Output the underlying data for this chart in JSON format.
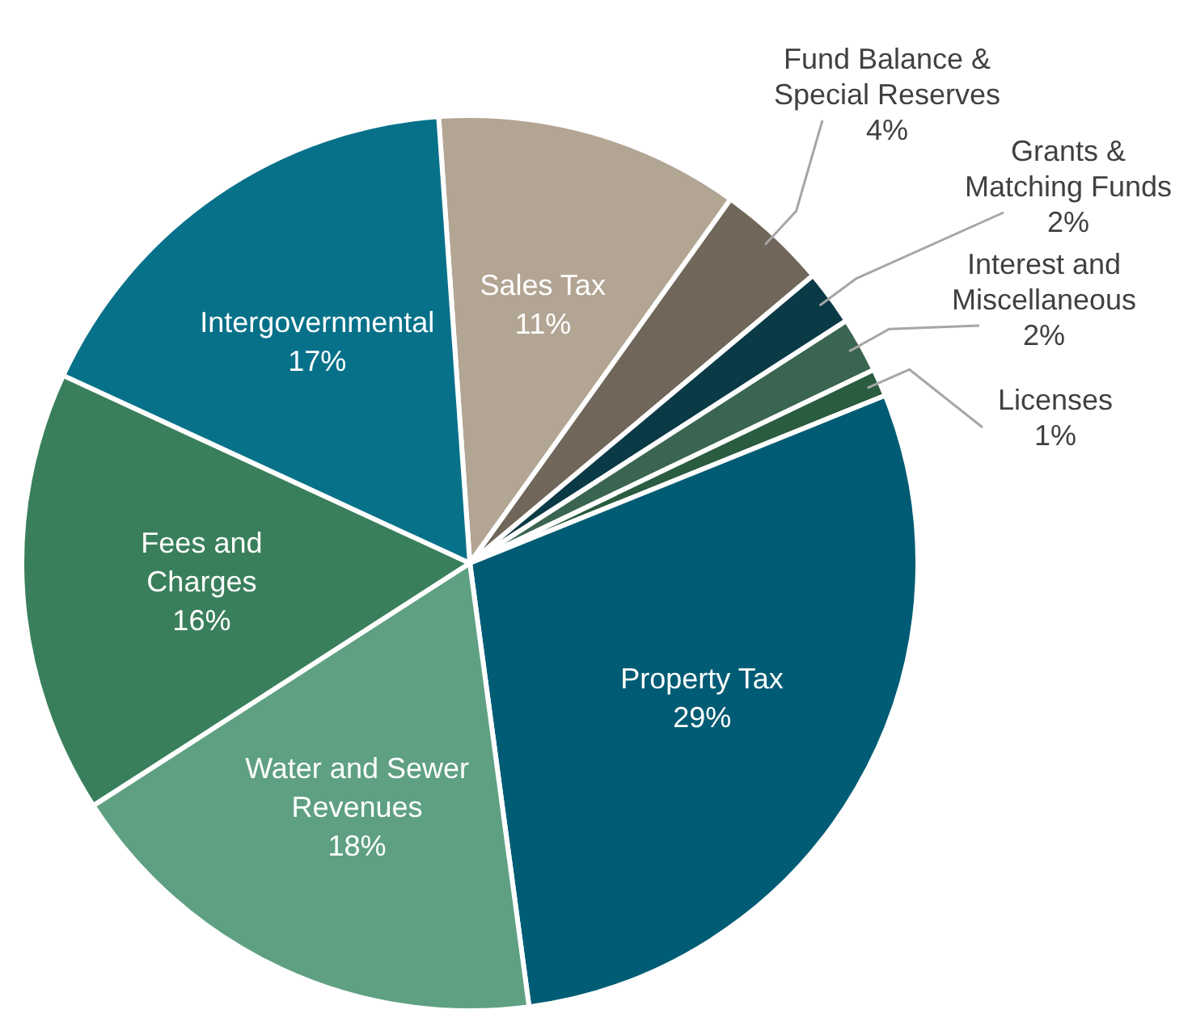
{
  "chart_data": {
    "type": "pie",
    "categories": [
      "Sales Tax",
      "Fund Balance &\nSpecial Reserves",
      "Grants &\nMatching Funds",
      "Interest and\nMiscellaneous",
      "Licenses",
      "Property Tax",
      "Water and Sewer\nRevenues",
      "Fees and\nCharges",
      "Intergovernmental"
    ],
    "values": [
      11,
      4,
      2,
      2,
      1,
      29,
      18,
      16,
      17
    ],
    "value_labels": [
      "11%",
      "4%",
      "2%",
      "2%",
      "1%",
      "29%",
      "18%",
      "16%",
      "17%"
    ],
    "colors": [
      "#b3a593",
      "#706659",
      "#0b3a47",
      "#3a6550",
      "#2a5c40",
      "#005c74",
      "#5fa083",
      "#3a7f5c",
      "#08718a"
    ]
  }
}
